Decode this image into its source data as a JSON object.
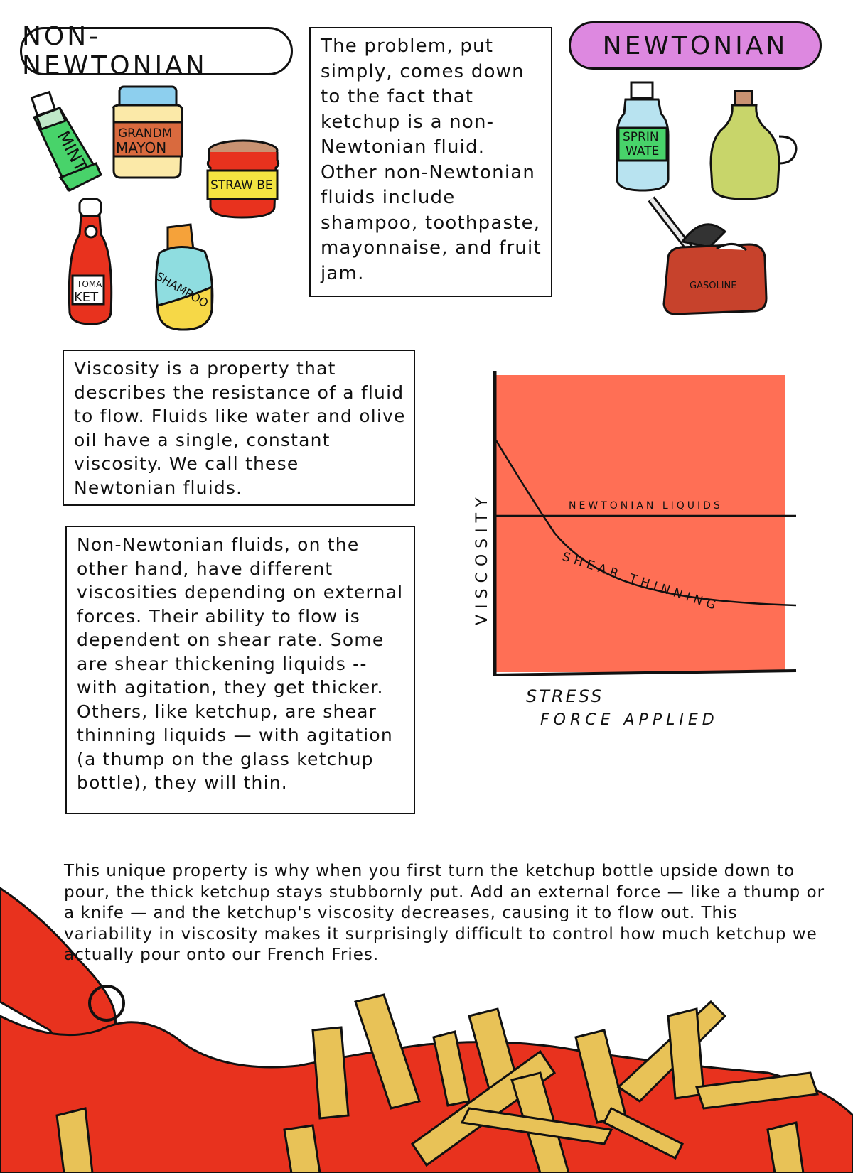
{
  "labels": {
    "non_newtonian": "NON- NEWTONIAN",
    "newtonian": "NEWTONIAN"
  },
  "text": {
    "intro": "The problem, put simply, comes down to the fact that ketchup is a non-Newtonian fluid. Other non-Newtonian fluids include shampoo, toothpaste, mayonnaise, and fruit jam.",
    "viscosity": "Viscosity is a property that describes the resistance of a fluid to flow. Fluids like water and olive oil have a single, constant viscosity. We call these Newtonian fluids.",
    "non_newtonian_explain": "Non-Newtonian fluids, on the other hand, have different viscosities depending on external forces. Their ability to flow is dependent on shear rate. Some are shear thickening liquids -- with agitation, they get thicker. Others, like ketchup, are shear thinning liquids — with agitation (a thump on the glass ketchup bottle), they will thin.",
    "bottom": "This unique property is why when you first turn the ketchup bottle upside down to pour, the thick ketchup stays stubbornly put. Add an external force — like a thump or a knife — and the ketchup's viscosity decreases, causing it to flow out. This variability in viscosity makes it surprisingly difficult to control how much ketchup we actually pour onto our French Fries."
  },
  "product_labels": {
    "toothpaste": "MINT",
    "mayo_line1": "GRANDM",
    "mayo_line2": "MAYON",
    "jam": "STRAW BE",
    "ketchup_line1": "TOMA",
    "ketchup_line2": "KET",
    "shampoo": "SHAMPOO",
    "water_line1": "SPRIN",
    "water_line2": "WATE",
    "gasoline": "GASOLINE"
  },
  "chart_data": {
    "type": "line",
    "xlabel": "STRESS",
    "xlabel_sub": "FORCE APPLIED",
    "ylabel": "VISCOSITY",
    "series": [
      {
        "name": "NEWTONIAN LIQUIDS",
        "shape": "constant"
      },
      {
        "name": "SHEAR THINNING",
        "shape": "decreasing"
      }
    ],
    "background_color": "#ff6f55"
  },
  "colors": {
    "ketchup": "#e8321e",
    "fries": "#e8c257",
    "pill_newtonian": "#dd88e0",
    "chart_bg": "#ff6f55"
  }
}
